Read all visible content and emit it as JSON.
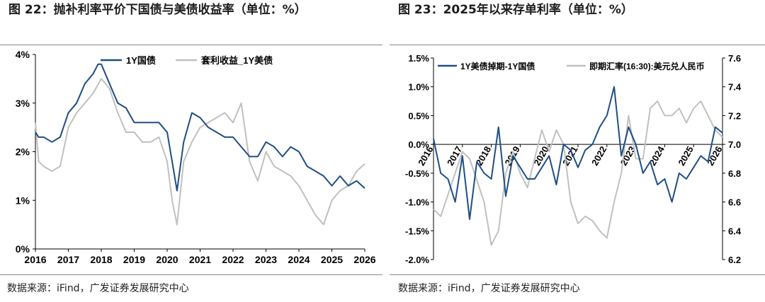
{
  "left": {
    "title": "图 22：抛补利率平价下国债与美债收益率（单位：%）",
    "source": "数据来源：iFind，广发证券发展研究中心",
    "colors": {
      "series1": "#1f4e85",
      "series2": "#c0c0c0"
    },
    "chart_data": {
      "type": "line",
      "title": "抛补利率平价下国债与美债收益率（单位：%）",
      "x_ticks": [
        "2016",
        "2017",
        "2018",
        "2019",
        "2020",
        "2021",
        "2022",
        "2023",
        "2024",
        "2025",
        "2026"
      ],
      "y_ticks": [
        "0%",
        "1%",
        "2%",
        "3%",
        "4%"
      ],
      "ylim": [
        0,
        4
      ],
      "xlim": [
        2016,
        2026
      ],
      "legend_position": "top-center",
      "grid": false,
      "series": [
        {
          "name": "1Y国债",
          "x": [
            2016.0,
            2016.1,
            2016.25,
            2016.5,
            2016.75,
            2017.0,
            2017.25,
            2017.5,
            2017.75,
            2017.9,
            2018.0,
            2018.25,
            2018.5,
            2018.75,
            2019.0,
            2019.25,
            2019.5,
            2019.75,
            2020.0,
            2020.15,
            2020.3,
            2020.5,
            2020.75,
            2021.0,
            2021.25,
            2021.5,
            2021.75,
            2022.0,
            2022.25,
            2022.5,
            2022.75,
            2023.0,
            2023.25,
            2023.5,
            2023.75,
            2024.0,
            2024.25,
            2024.5,
            2024.75,
            2025.0,
            2025.25,
            2025.5,
            2025.75,
            2026.0
          ],
          "y": [
            2.4,
            2.3,
            2.3,
            2.2,
            2.3,
            2.8,
            3.0,
            3.4,
            3.6,
            3.8,
            3.8,
            3.4,
            3.0,
            2.9,
            2.6,
            2.6,
            2.6,
            2.6,
            2.4,
            1.8,
            1.2,
            2.2,
            2.8,
            2.7,
            2.5,
            2.4,
            2.3,
            2.3,
            2.1,
            1.9,
            1.9,
            2.2,
            2.1,
            1.9,
            2.1,
            2.0,
            1.7,
            1.6,
            1.5,
            1.3,
            1.5,
            1.3,
            1.4,
            1.25
          ]
        },
        {
          "name": "套利收益_1Y美债",
          "x": [
            2016.0,
            2016.1,
            2016.25,
            2016.5,
            2016.75,
            2017.0,
            2017.25,
            2017.5,
            2017.75,
            2018.0,
            2018.25,
            2018.5,
            2018.75,
            2019.0,
            2019.25,
            2019.5,
            2019.75,
            2020.0,
            2020.15,
            2020.3,
            2020.5,
            2020.75,
            2021.0,
            2021.25,
            2021.5,
            2021.75,
            2022.0,
            2022.25,
            2022.5,
            2022.75,
            2023.0,
            2023.25,
            2023.5,
            2023.75,
            2024.0,
            2024.25,
            2024.5,
            2024.75,
            2025.0,
            2025.25,
            2025.5,
            2025.75,
            2026.0
          ],
          "y": [
            2.6,
            1.8,
            1.7,
            1.6,
            1.7,
            2.5,
            2.8,
            3.0,
            3.2,
            3.5,
            3.3,
            2.8,
            2.4,
            2.4,
            2.2,
            2.2,
            2.3,
            1.8,
            1.0,
            0.5,
            1.8,
            2.2,
            2.5,
            2.6,
            2.7,
            2.8,
            2.6,
            3.0,
            1.8,
            1.4,
            2.0,
            1.7,
            1.6,
            1.5,
            1.3,
            1.0,
            0.7,
            0.5,
            1.0,
            1.2,
            1.3,
            1.6,
            1.75
          ]
        }
      ]
    }
  },
  "right": {
    "title": "图 23：2025年以来存单利率（单位：%）",
    "source": "数据来源：iFind，广发证券发展研究中心",
    "colors": {
      "series1": "#1f4e85",
      "series2": "#c0c0c0"
    },
    "chart_data": {
      "type": "line",
      "title": "2025年以来存单利率（单位：%）",
      "x_ticks": [
        "2016",
        "2017",
        "2018",
        "2019",
        "2020",
        "2021",
        "2022",
        "2023",
        "2024",
        "2025",
        "2026"
      ],
      "y_ticks": [
        "1.5%",
        "1.0%",
        "0.5%",
        "0.0%",
        "-0.5%",
        "-1.0%",
        "-1.5%",
        "-2.0%"
      ],
      "y2_ticks": [
        "7.6",
        "7.4",
        "7.2",
        "7.0",
        "6.8",
        "6.6",
        "6.4",
        "6.2"
      ],
      "ylim": [
        -2.0,
        1.5
      ],
      "y2lim": [
        6.2,
        7.6
      ],
      "xlim": [
        2016,
        2026
      ],
      "legend_position": "top",
      "grid": false,
      "series": [
        {
          "name": "1Y美债掉期-1Y国债",
          "axis": "left",
          "x": [
            2016.0,
            2016.25,
            2016.5,
            2016.75,
            2017.0,
            2017.25,
            2017.5,
            2017.75,
            2018.0,
            2018.25,
            2018.5,
            2018.75,
            2019.0,
            2019.25,
            2019.5,
            2019.75,
            2020.0,
            2020.25,
            2020.5,
            2020.75,
            2021.0,
            2021.25,
            2021.5,
            2021.75,
            2022.0,
            2022.25,
            2022.5,
            2022.75,
            2023.0,
            2023.25,
            2023.5,
            2023.75,
            2024.0,
            2024.25,
            2024.5,
            2024.75,
            2025.0,
            2025.25,
            2025.5,
            2025.75,
            2026.0
          ],
          "y": [
            0.1,
            -0.5,
            -0.6,
            -1.0,
            -0.2,
            -1.3,
            -0.3,
            -0.5,
            -0.6,
            0.3,
            -0.9,
            -0.2,
            -0.4,
            -0.6,
            -0.6,
            -0.4,
            -0.2,
            -0.7,
            0.0,
            -0.1,
            -0.4,
            -0.1,
            0.0,
            0.3,
            0.5,
            1.0,
            -0.2,
            0.3,
            0.0,
            -0.5,
            -0.3,
            -0.7,
            -0.6,
            -1.0,
            -0.5,
            -0.6,
            -0.4,
            -0.2,
            -0.3,
            0.3,
            0.2
          ]
        },
        {
          "name": "即期汇率(16:30):美元兑人民币",
          "axis": "right",
          "x": [
            2016.0,
            2016.25,
            2016.5,
            2016.75,
            2017.0,
            2017.25,
            2017.5,
            2017.75,
            2018.0,
            2018.25,
            2018.5,
            2018.75,
            2019.0,
            2019.25,
            2019.5,
            2019.75,
            2020.0,
            2020.25,
            2020.5,
            2020.75,
            2021.0,
            2021.25,
            2021.5,
            2021.75,
            2022.0,
            2022.25,
            2022.5,
            2022.75,
            2023.0,
            2023.25,
            2023.5,
            2023.75,
            2024.0,
            2024.25,
            2024.5,
            2024.75,
            2025.0,
            2025.25,
            2025.5,
            2025.75,
            2026.0
          ],
          "y": [
            6.55,
            6.5,
            6.65,
            6.8,
            6.95,
            6.9,
            6.75,
            6.6,
            6.3,
            6.4,
            6.8,
            6.95,
            6.8,
            6.7,
            6.9,
            7.1,
            6.95,
            7.1,
            7.0,
            6.6,
            6.45,
            6.5,
            6.47,
            6.4,
            6.35,
            6.6,
            6.8,
            7.2,
            6.9,
            6.9,
            7.25,
            7.3,
            7.2,
            7.2,
            7.25,
            7.15,
            7.25,
            7.3,
            7.2,
            7.1,
            7.05
          ]
        }
      ]
    }
  }
}
